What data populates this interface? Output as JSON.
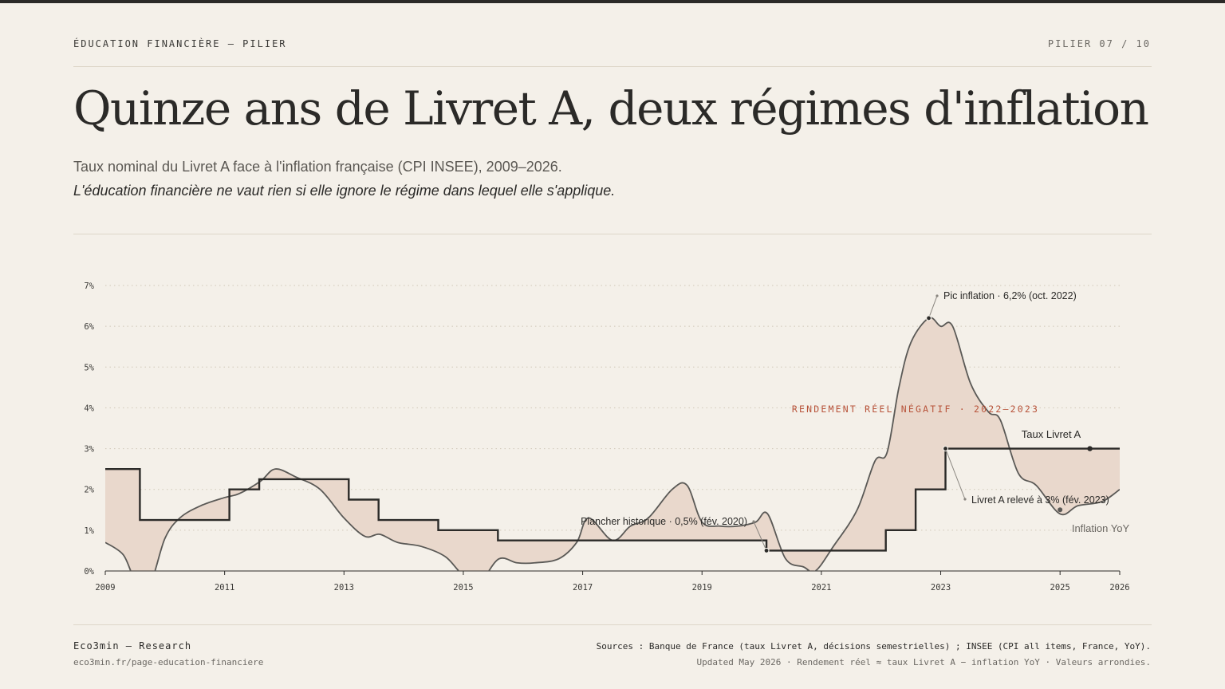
{
  "header": {
    "eyebrow": "ÉDUCATION FINANCIÈRE — PILIER",
    "pillar": "PILIER 07 / 10",
    "title": "Quinze ans de Livret A, deux régimes d'inflation",
    "subtitle": "Taux nominal du Livret A face à l'inflation française (CPI INSEE), 2009–2026.",
    "kicker": "L'éducation financière ne vaut rien si elle ignore le régime dans lequel elle s'applique."
  },
  "chart_data": {
    "type": "line",
    "ylim": [
      0,
      7
    ],
    "xlim": [
      2009,
      2026
    ],
    "y_ticks": [
      "0%",
      "1%",
      "2%",
      "3%",
      "4%",
      "5%",
      "6%",
      "7%"
    ],
    "x_ticks": [
      "2009",
      "2011",
      "2013",
      "2015",
      "2017",
      "2019",
      "2021",
      "2023",
      "2025",
      "2026"
    ],
    "grid": true,
    "colors": {
      "livret": "#2b2a28",
      "inflation": "#5a5956",
      "fill": "#e9d8cc",
      "annotation": "#b8533a"
    },
    "series": [
      {
        "name": "Taux Livret A",
        "shape": "step",
        "points": [
          [
            2009.0,
            2.5
          ],
          [
            2009.58,
            1.25
          ],
          [
            2011.08,
            2.0
          ],
          [
            2011.58,
            2.25
          ],
          [
            2013.08,
            1.75
          ],
          [
            2013.58,
            1.25
          ],
          [
            2014.58,
            1.0
          ],
          [
            2015.58,
            0.75
          ],
          [
            2020.08,
            0.5
          ],
          [
            2022.08,
            1.0
          ],
          [
            2022.58,
            2.0
          ],
          [
            2023.08,
            3.0
          ],
          [
            2026.0,
            3.0
          ]
        ]
      },
      {
        "name": "Inflation YoY",
        "shape": "smooth",
        "points": [
          [
            2009.0,
            0.7
          ],
          [
            2009.3,
            0.4
          ],
          [
            2009.5,
            -0.2
          ],
          [
            2009.75,
            -0.3
          ],
          [
            2010.0,
            0.8
          ],
          [
            2010.25,
            1.3
          ],
          [
            2010.6,
            1.6
          ],
          [
            2011.0,
            1.8
          ],
          [
            2011.25,
            1.9
          ],
          [
            2011.6,
            2.2
          ],
          [
            2011.85,
            2.5
          ],
          [
            2012.2,
            2.3
          ],
          [
            2012.6,
            2.0
          ],
          [
            2013.0,
            1.3
          ],
          [
            2013.35,
            0.85
          ],
          [
            2013.6,
            0.9
          ],
          [
            2013.9,
            0.7
          ],
          [
            2014.3,
            0.6
          ],
          [
            2014.7,
            0.35
          ],
          [
            2015.0,
            -0.1
          ],
          [
            2015.3,
            -0.2
          ],
          [
            2015.6,
            0.3
          ],
          [
            2015.9,
            0.2
          ],
          [
            2016.2,
            0.2
          ],
          [
            2016.6,
            0.3
          ],
          [
            2016.9,
            0.7
          ],
          [
            2017.1,
            1.3
          ],
          [
            2017.5,
            0.75
          ],
          [
            2017.8,
            1.1
          ],
          [
            2018.1,
            1.3
          ],
          [
            2018.5,
            2.0
          ],
          [
            2018.75,
            2.1
          ],
          [
            2019.0,
            1.2
          ],
          [
            2019.3,
            1.1
          ],
          [
            2019.6,
            1.1
          ],
          [
            2019.9,
            1.2
          ],
          [
            2020.1,
            1.4
          ],
          [
            2020.4,
            0.3
          ],
          [
            2020.7,
            0.1
          ],
          [
            2020.9,
            0.0
          ],
          [
            2021.2,
            0.6
          ],
          [
            2021.6,
            1.5
          ],
          [
            2021.9,
            2.7
          ],
          [
            2022.1,
            2.9
          ],
          [
            2022.3,
            4.5
          ],
          [
            2022.5,
            5.6
          ],
          [
            2022.8,
            6.2
          ],
          [
            2023.0,
            6.0
          ],
          [
            2023.2,
            6.0
          ],
          [
            2023.5,
            4.6
          ],
          [
            2023.8,
            3.9
          ],
          [
            2024.0,
            3.7
          ],
          [
            2024.3,
            2.4
          ],
          [
            2024.6,
            2.1
          ],
          [
            2025.0,
            1.4
          ],
          [
            2025.3,
            1.6
          ],
          [
            2025.7,
            1.7
          ],
          [
            2026.0,
            2.0
          ]
        ]
      }
    ],
    "labels": {
      "livret": "Taux Livret A",
      "inflation": "Inflation YoY",
      "regime": "RENDEMENT RÉEL NÉGATIF · 2022–2023"
    },
    "annotations": [
      {
        "text": "Pic inflation · 6,2% (oct. 2022)",
        "x": 2022.8,
        "y": 6.2
      },
      {
        "text": "Livret A relevé à 3% (fév. 2023)",
        "x": 2023.08,
        "y": 3.0
      },
      {
        "text": "Plancher historique · 0,5% (fév. 2020)",
        "x": 2020.08,
        "y": 0.5
      }
    ]
  },
  "footer": {
    "brand": "Eco3min — Research",
    "url": "eco3min.fr/page-education-financiere",
    "sources": "Sources : Banque de France (taux Livret A, décisions semestrielles) ; INSEE (CPI all items, France, YoY).",
    "notes": "Updated May 2026 · Rendement réel ≈ taux Livret A − inflation YoY · Valeurs arrondies."
  }
}
